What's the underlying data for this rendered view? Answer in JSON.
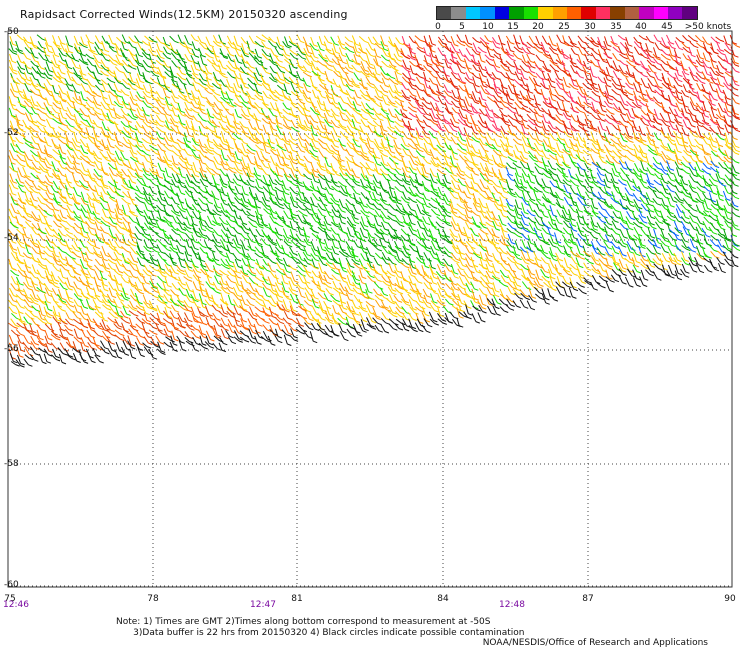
{
  "title": "Rapidsact Corrected Winds(12.5KM) 20150320 ascending",
  "colorbar": {
    "colors": [
      "#4a4a4a",
      "#8c8c8c",
      "#00c8ff",
      "#0090ff",
      "#0000e0",
      "#00a000",
      "#18e000",
      "#ffd000",
      "#ffa000",
      "#ff6000",
      "#e00000",
      "#ff3060",
      "#884000",
      "#b06040",
      "#c000c0",
      "#ff00ff",
      "#9000c0",
      "#600080"
    ],
    "labels": [
      "0",
      "5",
      "10",
      "15",
      "20",
      "25",
      "30",
      "35",
      "40",
      "45",
      ">50 knots"
    ]
  },
  "lat_labels": [
    "-50",
    "-52",
    "-54",
    "-56",
    "-58",
    "-60"
  ],
  "lon_labels": [
    "75",
    "78",
    "81",
    "84",
    "87",
    "90"
  ],
  "time_labels": [
    "12:46",
    "12:47",
    "12:48"
  ],
  "note_line1": "Note: 1) Times are GMT 2)Times along bottom correspond to measurement at -50S",
  "note_line2": "      3)Data buffer is 22 hrs from 20150320 4) Black circles indicate possible contamination",
  "credit": "NOAA/NESDIS/Office of Research and Applications"
}
